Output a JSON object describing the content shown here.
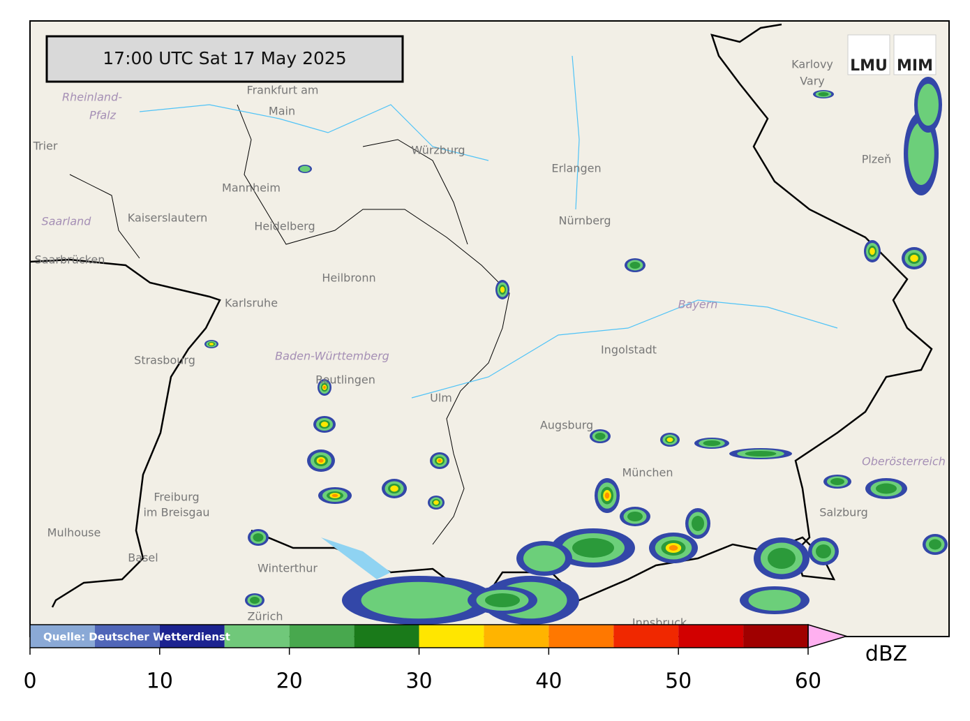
{
  "timestamp": "17:00 UTC  Sat 17 May 2025",
  "logo": {
    "left": "LMU",
    "right": "MIM"
  },
  "source": "Quelle: Deutscher Wetterdienst",
  "places": [
    "Frankfurt am",
    "Main",
    "Rheinland-",
    "Pfalz",
    "Trier",
    "Mannheim",
    "Kaiserslautern",
    "Heidelberg",
    "Saarland",
    "Saarbrücken",
    "Heilbronn",
    "Karlsruhe",
    "Strasbourg",
    "Baden-Württemberg",
    "Reutlingen",
    "Ulm",
    "Freiburg",
    "im Breisgau",
    "Mulhouse",
    "Basel",
    "Winterthur",
    "Zürich",
    "Würzburg",
    "Erlangen",
    "Nürnberg",
    "Ingolstadt",
    "Bayern",
    "Augsburg",
    "München",
    "Karlovy",
    "Vary",
    "Plzeň",
    "Oberösterreich",
    "Salzburg",
    "Innsbruck"
  ],
  "colorbar": {
    "label": "dBZ",
    "bounds": [
      0,
      5,
      10,
      15,
      20,
      25,
      30,
      35,
      40,
      45,
      50,
      55,
      60
    ],
    "colors": [
      "#8aa9d6",
      "#5066b8",
      "#1c2390",
      "#70c87a",
      "#48a84e",
      "#1a7a1a",
      "#ffe600",
      "#ffb400",
      "#ff7800",
      "#f02800",
      "#d20000",
      "#a00000"
    ],
    "extend_color": "#ffb0f0",
    "ticks": [
      0,
      10,
      20,
      30,
      40,
      50,
      60
    ]
  }
}
